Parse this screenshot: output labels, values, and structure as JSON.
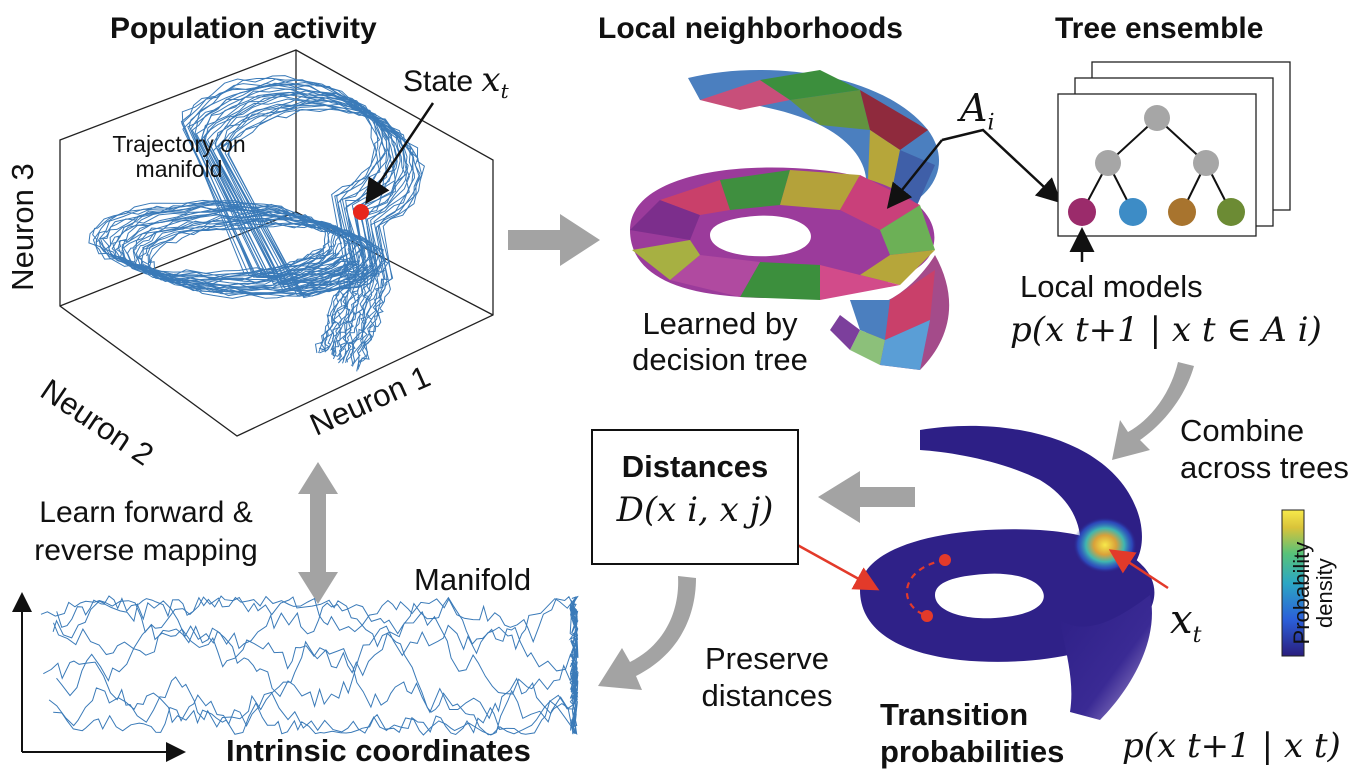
{
  "titles": {
    "population_activity": "Population activity",
    "local_neighborhoods": "Local neighborhoods",
    "tree_ensemble": "Tree ensemble"
  },
  "panel_population": {
    "state_prefix": "State",
    "state_var": "x",
    "state_sub": "t",
    "trajectory_label_1": "Trajectory on",
    "trajectory_label_2": "manifold",
    "axis_neuron3": "Neuron 3",
    "axis_neuron2": "Neuron 2",
    "axis_neuron1": "Neuron 1"
  },
  "panel_neighborhoods": {
    "region_symbol": "A",
    "region_sub": "i",
    "learned_by_1": "Learned by",
    "learned_by_2": "decision tree"
  },
  "panel_tree": {
    "local_models": "Local models",
    "local_models_formula": "p(x t+1 | x t ∈ A i)",
    "leaf_colors": [
      "#9b2b6b",
      "#3d8cc6",
      "#a8742e",
      "#6c8b34"
    ],
    "node_color": "#a6a6a6"
  },
  "panel_transition": {
    "combine_1": "Combine",
    "combine_2": "across trees",
    "colorbar_label_1": "Probability",
    "colorbar_label_2": "density",
    "x_t_var": "x",
    "x_t_sub": "t",
    "title_1": "Transition",
    "title_2": "probabilities",
    "formula": "p(x t+1 | x t)",
    "colormap": [
      "#2a1e7e",
      "#2b5fd9",
      "#2ca7c4",
      "#57c27a",
      "#d9c33a",
      "#f7e94a"
    ]
  },
  "panel_distances": {
    "title": "Distances",
    "formula": "D(x i, x j)"
  },
  "panel_mapping": {
    "learn_1": "Learn forward &",
    "learn_2": "reverse mapping",
    "manifold": "Manifold",
    "preserve_1": "Preserve",
    "preserve_2": "distances",
    "intrinsic": "Intrinsic coordinates"
  },
  "colors": {
    "trajectory": "#3a7ab8",
    "state_dot": "#e8261c",
    "gray_arrow": "#a3a3a3",
    "red_arrow": "#e33a2a"
  }
}
